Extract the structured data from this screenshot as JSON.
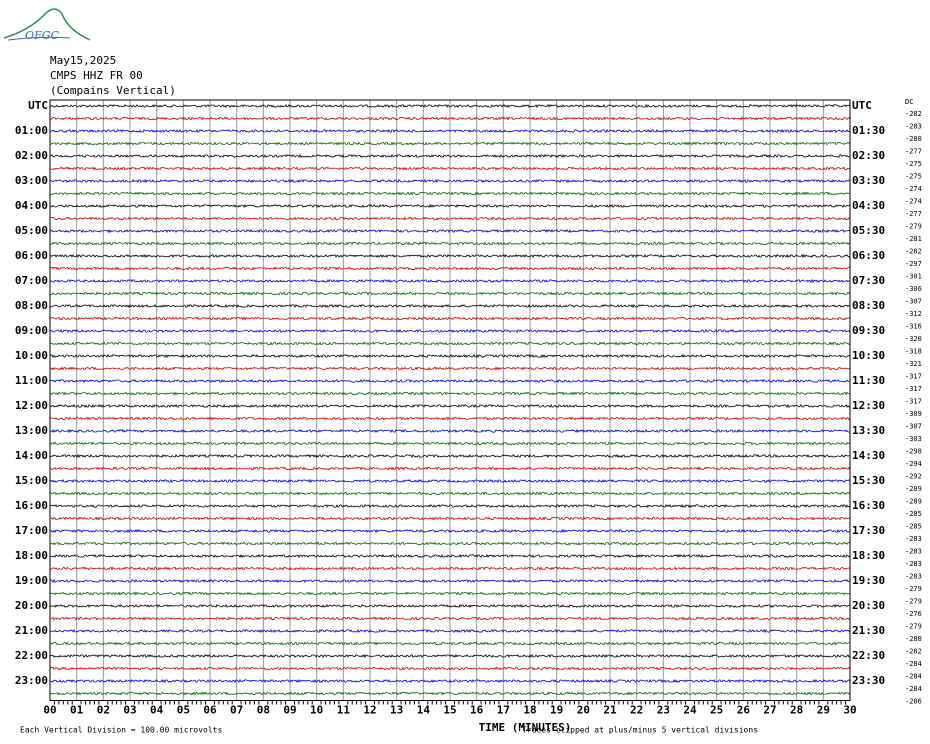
{
  "header": {
    "logo_text": "OFGC",
    "date": "May15,2025",
    "station": "CMPS HHZ FR 00",
    "location": "(Compains Vertical)"
  },
  "left_labels": [
    "UTC",
    "01:00",
    "02:00",
    "03:00",
    "04:00",
    "05:00",
    "06:00",
    "07:00",
    "08:00",
    "09:00",
    "10:00",
    "11:00",
    "12:00",
    "13:00",
    "14:00",
    "15:00",
    "16:00",
    "17:00",
    "18:00",
    "19:00",
    "20:00",
    "21:00",
    "22:00",
    "23:00"
  ],
  "right_labels": [
    "UTC",
    "01:30",
    "02:30",
    "03:30",
    "04:30",
    "05:30",
    "06:30",
    "07:30",
    "08:30",
    "09:30",
    "10:30",
    "11:30",
    "12:30",
    "13:30",
    "14:30",
    "15:30",
    "16:30",
    "17:30",
    "18:30",
    "19:30",
    "20:30",
    "21:30",
    "22:30",
    "23:30"
  ],
  "dc_header": "DC",
  "dc_values": [
    -282,
    -283,
    -280,
    -277,
    -275,
    -275,
    -274,
    -274,
    -277,
    -279,
    -281,
    -282,
    -297,
    -301,
    -306,
    -307,
    -312,
    -316,
    -320,
    -318,
    -321,
    -317,
    -317,
    -317,
    -309,
    -307,
    -303,
    -298,
    -294,
    -292,
    -289,
    -289,
    -285,
    -285,
    -283,
    -283,
    -283,
    -283,
    -279,
    -279,
    -276,
    -279,
    -280,
    -282,
    -284,
    -284,
    -284,
    -286
  ],
  "x_ticks": [
    "00",
    "01",
    "02",
    "03",
    "04",
    "05",
    "06",
    "07",
    "08",
    "09",
    "10",
    "11",
    "12",
    "13",
    "14",
    "15",
    "16",
    "17",
    "18",
    "19",
    "20",
    "21",
    "22",
    "23",
    "24",
    "25",
    "26",
    "27",
    "28",
    "29",
    "30"
  ],
  "x_title": "TIME (MINUTES)",
  "footer_left": "Each Vertical Division =  100.00 microvolts",
  "footer_right": "Traces clipped at plus/minus 5 vertical divisions"
}
